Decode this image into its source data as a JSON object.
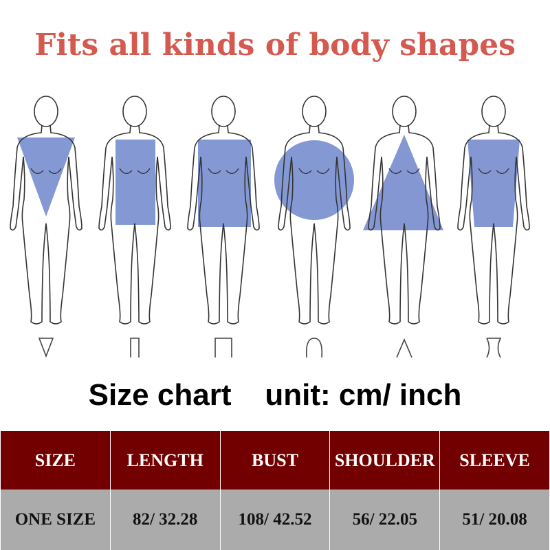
{
  "title": "Fits all kinds of body shapes",
  "body_shapes": [
    "inverted-triangle",
    "rectangle",
    "rectangle",
    "round",
    "triangle",
    "hourglass"
  ],
  "shape_color": "#6f86cc",
  "subtitle": "Size chart    unit: cm/ inch",
  "table": {
    "headers": [
      "SIZE",
      "LENGTH",
      "BUST",
      "SHOULDER",
      "SLEEVE"
    ],
    "rows": [
      [
        "ONE SIZE",
        "82/ 32.28",
        "108/ 42.52",
        "56/ 22.05",
        "51/ 20.08"
      ]
    ],
    "header_color": "#730000",
    "row_color": "#ababab"
  }
}
